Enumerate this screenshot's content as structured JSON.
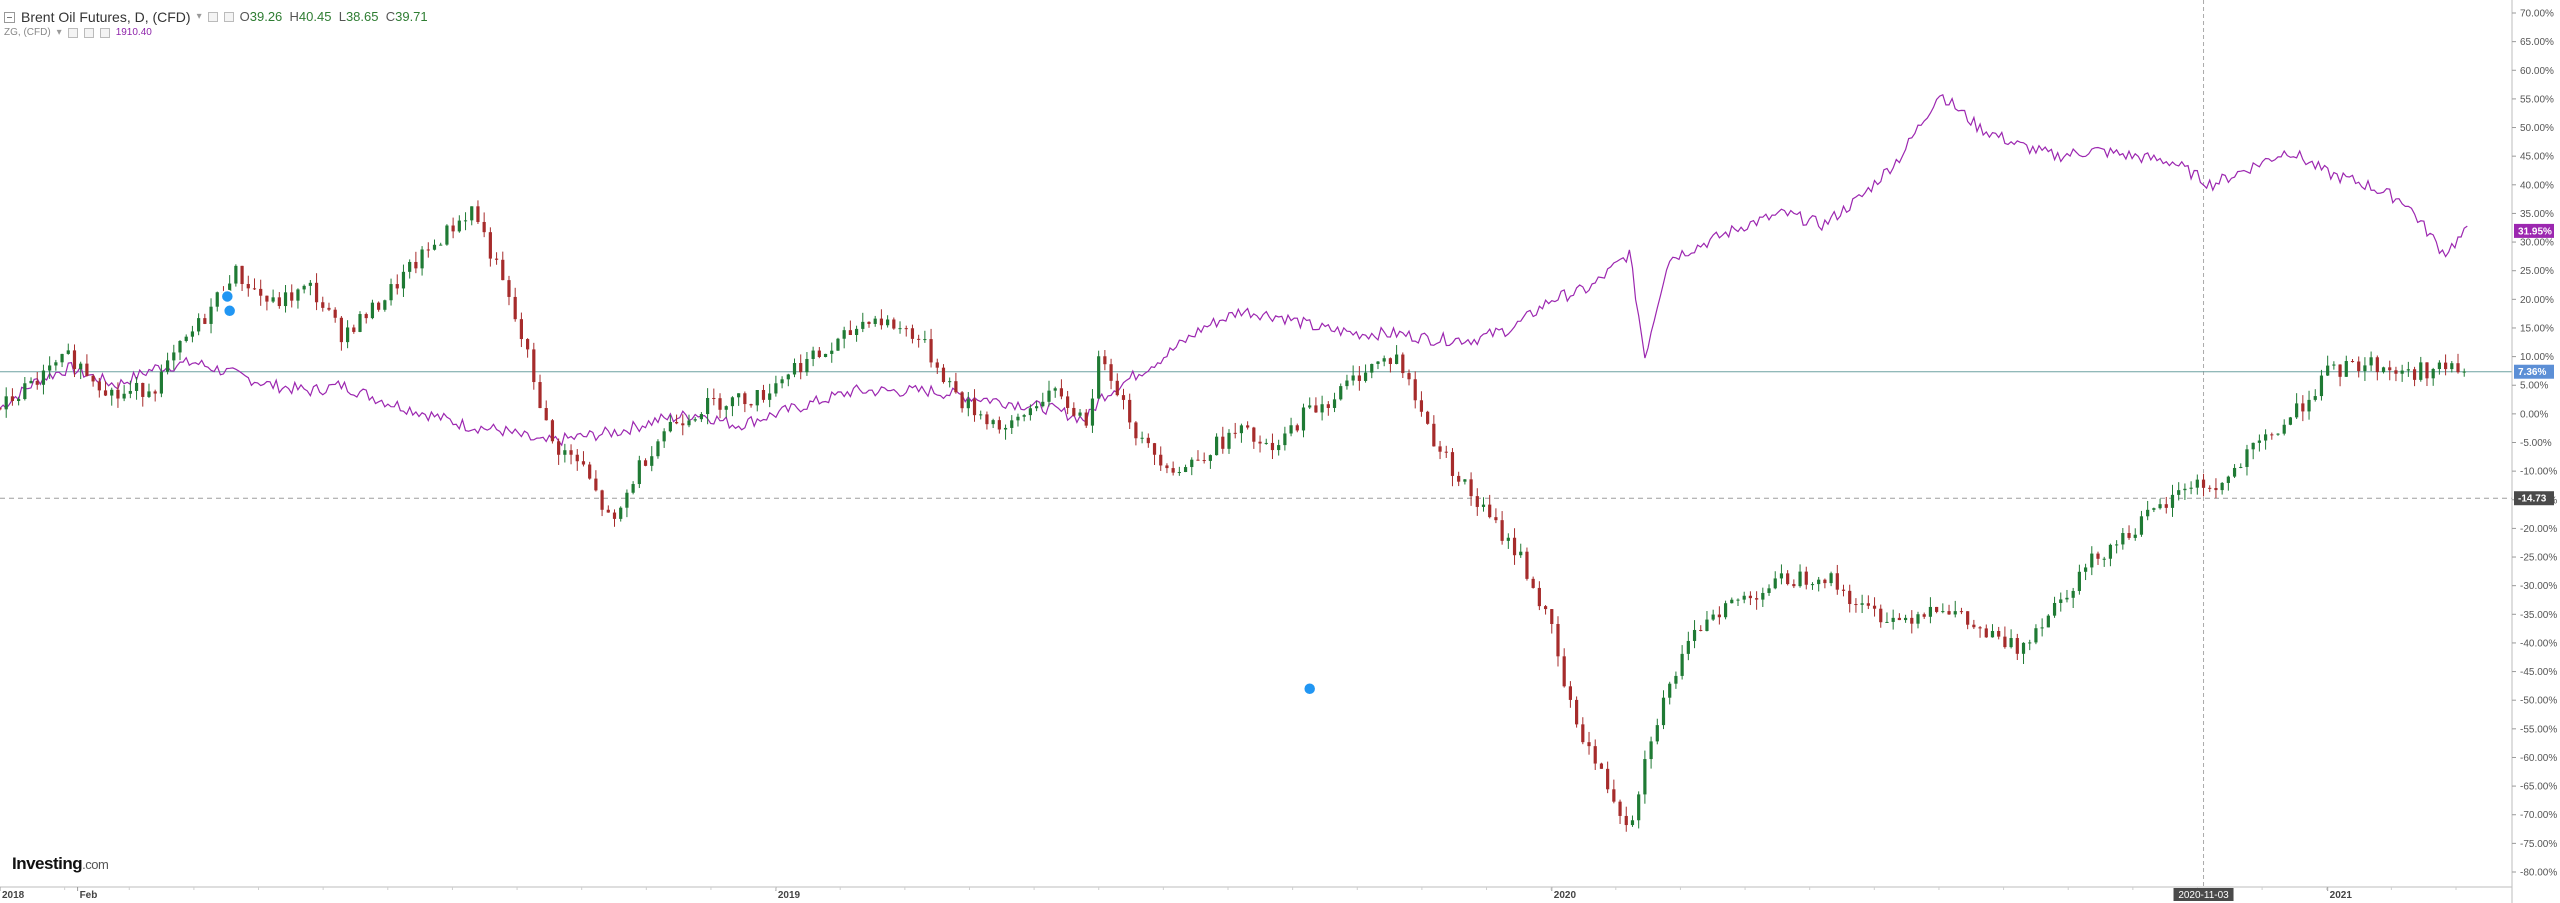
{
  "legend": {
    "title": "Brent Oil Futures, D, (CFD)",
    "ohlc": {
      "open_label": "O",
      "open": "39.26",
      "high_label": "H",
      "high": "40.45",
      "low_label": "L",
      "low": "38.65",
      "close_label": "C",
      "close": "39.71"
    },
    "secondary_title": "ZG, (CFD)",
    "secondary_value": "1910.40"
  },
  "logo": {
    "brand": "Investing",
    "suffix": ".com"
  },
  "colors": {
    "up": "#1f7a34",
    "down": "#a62b2b",
    "overlay": "#9c27b0",
    "hline": "#6fa2a2",
    "grid": "#d6d6d6",
    "marker": "#2196f3"
  },
  "chart_data": {
    "type": "line",
    "y_axis": {
      "unit": "percent",
      "min": -80,
      "max": 70,
      "ticks": [
        "70.00%",
        "65.00%",
        "60.00%",
        "55.00%",
        "50.00%",
        "45.00%",
        "40.00%",
        "35.00%",
        "30.00%",
        "25.00%",
        "20.00%",
        "15.00%",
        "10.00%",
        "5.00%",
        "0.00%",
        "-5.00%",
        "-10.00%",
        "-15.00%",
        "-20.00%",
        "-25.00%",
        "-30.00%",
        "-35.00%",
        "-40.00%",
        "-45.00%",
        "-50.00%",
        "-55.00%",
        "-60.00%",
        "-65.00%",
        "-70.00%",
        "-75.00%",
        "-80.00%"
      ]
    },
    "x_axis": {
      "ticks": [
        {
          "t": 0.0,
          "label": "2018"
        },
        {
          "t": 0.1,
          "label": "Feb"
        },
        {
          "t": 1.0,
          "label": "2019"
        },
        {
          "t": 2.0,
          "label": "2020"
        },
        {
          "t": 3.0,
          "label": "2021"
        }
      ],
      "crosshair": {
        "t": 2.84,
        "label": "2020-11-03"
      }
    },
    "horizontal_lines": [
      {
        "y": 7.36,
        "style": "solid"
      },
      {
        "y": -14.73,
        "style": "dashed"
      }
    ],
    "axis_badges": [
      {
        "y": 31.95,
        "label": "31.95%",
        "series": "ZG, (CFD)"
      },
      {
        "y": 7.36,
        "label": "7.36%",
        "series": "Brent Oil Futures, D, (CFD)"
      },
      {
        "y": -14.73,
        "label": "-14.73",
        "series": "crosshair"
      }
    ],
    "series": [
      {
        "name": "Brent Oil Futures, D, (CFD)",
        "style": "candles",
        "t": [
          0.0,
          0.05,
          0.09,
          0.15,
          0.2,
          0.23,
          0.27,
          0.3,
          0.35,
          0.4,
          0.44,
          0.48,
          0.52,
          0.57,
          0.61,
          0.65,
          0.68,
          0.71,
          0.75,
          0.79,
          0.82,
          0.86,
          0.92,
          0.98,
          1.02,
          1.07,
          1.12,
          1.18,
          1.24,
          1.3,
          1.35,
          1.4,
          1.42,
          1.47,
          1.52,
          1.56,
          1.6,
          1.64,
          1.68,
          1.72,
          1.76,
          1.8,
          1.85,
          1.9,
          1.96,
          2.0,
          2.02,
          2.06,
          2.1,
          2.13,
          2.16,
          2.2,
          2.25,
          2.3,
          2.35,
          2.4,
          2.45,
          2.5,
          2.55,
          2.6,
          2.65,
          2.7,
          2.75,
          2.8,
          2.82,
          2.86,
          2.9,
          2.95,
          3.0,
          3.05,
          3.1,
          3.14,
          3.18
        ],
        "v": [
          1,
          6,
          10,
          3,
          5,
          11,
          18,
          25,
          19,
          22,
          14,
          18,
          24,
          31,
          36,
          22,
          10,
          -5,
          -9,
          -20,
          -10,
          -2,
          2,
          3,
          8,
          11,
          17,
          14,
          2,
          -3,
          4,
          -1,
          11,
          -5,
          -10,
          -6,
          -3,
          -7,
          0,
          3,
          8,
          10,
          -5,
          -15,
          -25,
          -38,
          -50,
          -62,
          -72,
          -55,
          -45,
          -35,
          -32,
          -29,
          -28,
          -34,
          -36,
          -33,
          -38,
          -41,
          -33,
          -25,
          -20,
          -15,
          -12,
          -13,
          -7,
          -1,
          7,
          9,
          7,
          8,
          7.36
        ]
      },
      {
        "name": "ZG, (CFD)",
        "style": "line",
        "t": [
          0.0,
          0.05,
          0.09,
          0.15,
          0.2,
          0.25,
          0.3,
          0.35,
          0.4,
          0.44,
          0.5,
          0.55,
          0.6,
          0.65,
          0.7,
          0.75,
          0.8,
          0.85,
          0.9,
          0.95,
          1.0,
          1.05,
          1.1,
          1.15,
          1.2,
          1.25,
          1.3,
          1.35,
          1.4,
          1.42,
          1.5,
          1.55,
          1.6,
          1.65,
          1.7,
          1.75,
          1.8,
          1.85,
          1.9,
          1.95,
          2.0,
          2.05,
          2.1,
          2.12,
          2.15,
          2.2,
          2.25,
          2.3,
          2.35,
          2.4,
          2.45,
          2.5,
          2.55,
          2.6,
          2.65,
          2.7,
          2.75,
          2.8,
          2.85,
          2.9,
          2.95,
          3.0,
          3.05,
          3.1,
          3.15,
          3.18
        ],
        "v": [
          1,
          6,
          8,
          5,
          8,
          9,
          7,
          5,
          4,
          5,
          2,
          0,
          -2,
          -3,
          -5,
          -4,
          -3,
          -1,
          0,
          -2,
          0,
          2,
          4,
          4,
          4,
          3,
          2,
          1,
          -1,
          3,
          10,
          15,
          18,
          17,
          15,
          14,
          14,
          13,
          13,
          15,
          20,
          22,
          28,
          10,
          27,
          30,
          33,
          35,
          33,
          38,
          45,
          56,
          50,
          47,
          45,
          46,
          45,
          44,
          40,
          43,
          46,
          42,
          40,
          37,
          28,
          31.95
        ]
      }
    ]
  }
}
